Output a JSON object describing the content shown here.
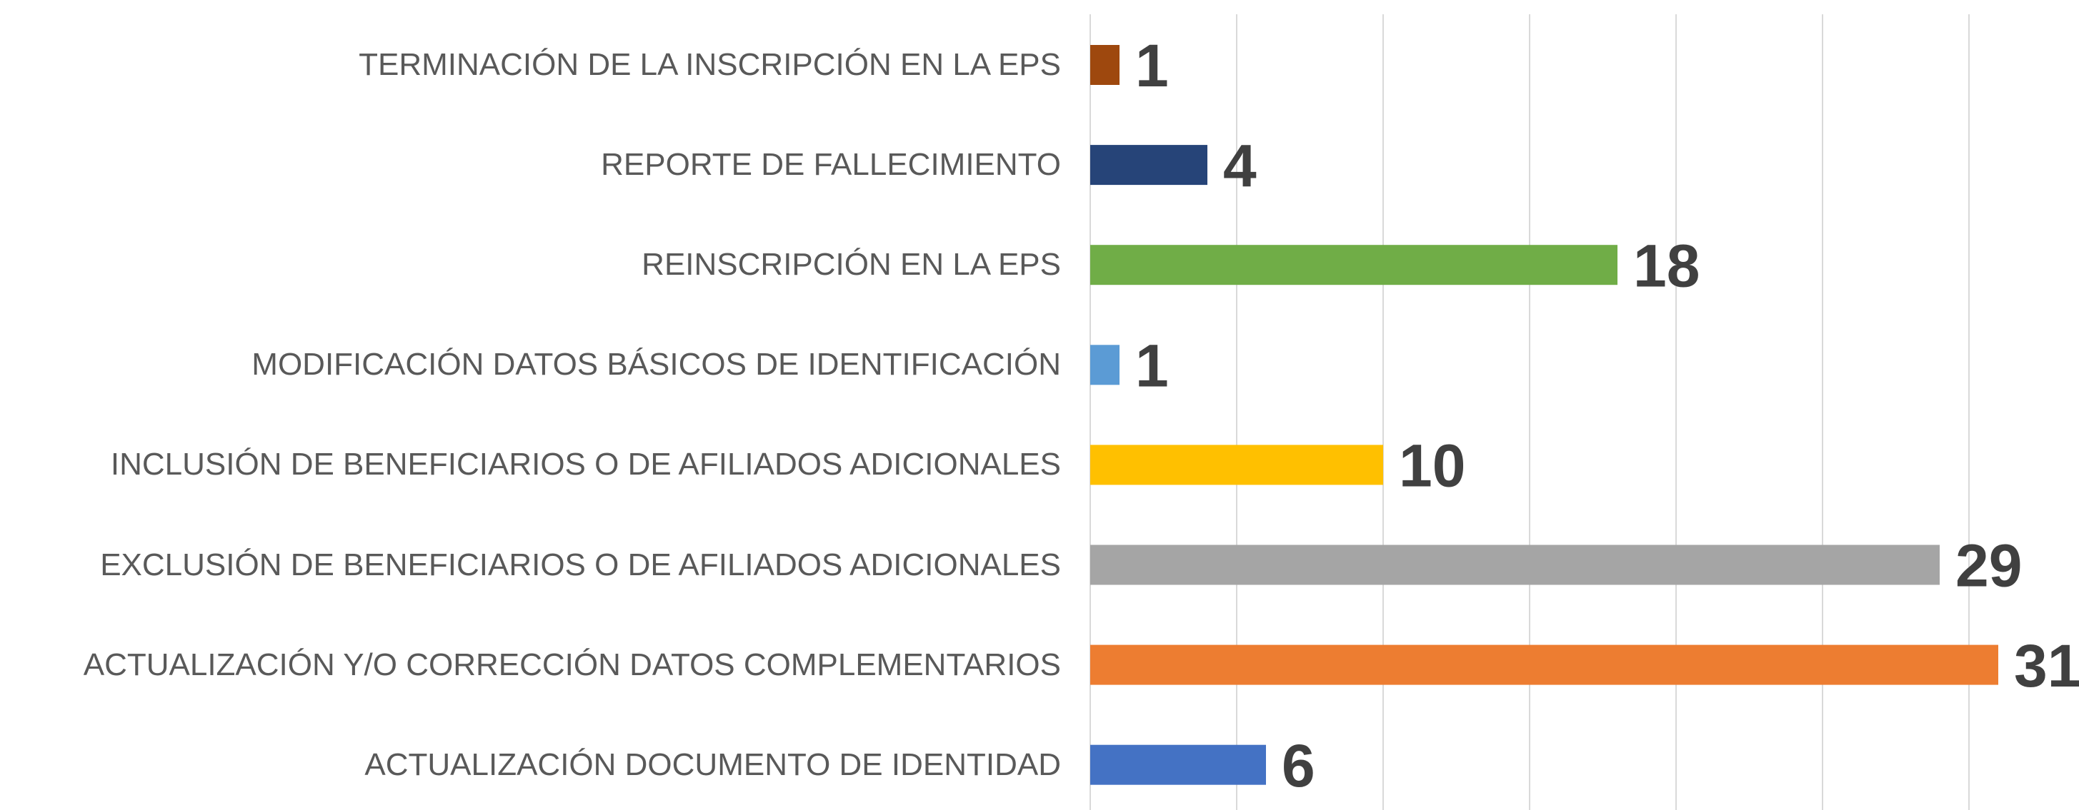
{
  "chart_data": {
    "type": "hbar",
    "categories": [
      "TERMINACIÓN DE LA INSCRIPCIÓN EN LA EPS",
      "REPORTE DE FALLECIMIENTO",
      "REINSCRIPCIÓN EN LA EPS",
      "MODIFICACIÓN DATOS BÁSICOS DE IDENTIFICACIÓN",
      "INCLUSIÓN DE BENEFICIARIOS O DE AFILIADOS ADICIONALES",
      "EXCLUSIÓN DE BENEFICIARIOS O DE AFILIADOS ADICIONALES",
      "ACTUALIZACIÓN Y/O CORRECCIÓN DATOS COMPLEMENTARIOS",
      "ACTUALIZACIÓN DOCUMENTO DE IDENTIDAD"
    ],
    "values": [
      1,
      4,
      18,
      1,
      10,
      29,
      31,
      6
    ],
    "colors": [
      "#9e480e",
      "#264478",
      "#70ad47",
      "#5b9bd5",
      "#ffc000",
      "#a5a5a5",
      "#ed7d31",
      "#4472c4"
    ],
    "xlim": [
      0,
      35
    ],
    "xticks": [
      0,
      5,
      10,
      15,
      20,
      25,
      30
    ],
    "grid": true
  }
}
